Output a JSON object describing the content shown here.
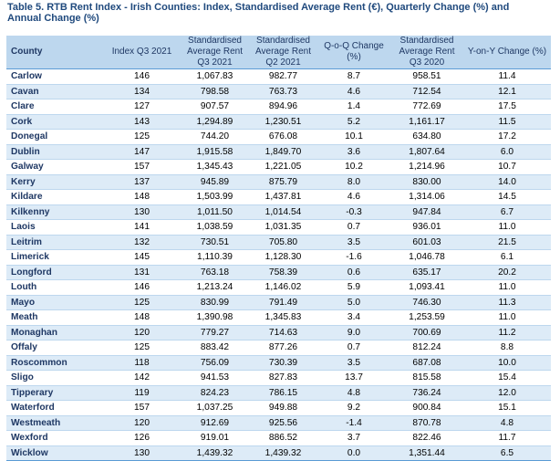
{
  "caption": "Table 5. RTB Rent Index - Irish Counties:  Index, Standardised Average Rent (€), Quarterly Change (%) and Annual Change (%)",
  "headers": {
    "county": "County",
    "index_q3_2021": "Index Q3 2021",
    "avg_rent_q3_2021": "Standardised Average Rent Q3 2021",
    "avg_rent_q2_2021": "Standardised Average Rent Q2 2021",
    "q_o_q": "Q-o-Q Change (%)",
    "avg_rent_q3_2020": "Standardised Average Rent Q3 2020",
    "y_o_y": "Y-on-Y Change (%)"
  },
  "rows": [
    [
      "Carlow",
      "146",
      "1,067.83",
      "982.77",
      "8.7",
      "958.51",
      "11.4"
    ],
    [
      "Cavan",
      "134",
      "798.58",
      "763.73",
      "4.6",
      "712.54",
      "12.1"
    ],
    [
      "Clare",
      "127",
      "907.57",
      "894.96",
      "1.4",
      "772.69",
      "17.5"
    ],
    [
      "Cork",
      "143",
      "1,294.89",
      "1,230.51",
      "5.2",
      "1,161.17",
      "11.5"
    ],
    [
      "Donegal",
      "125",
      "744.20",
      "676.08",
      "10.1",
      "634.80",
      "17.2"
    ],
    [
      "Dublin",
      "147",
      "1,915.58",
      "1,849.70",
      "3.6",
      "1,807.64",
      "6.0"
    ],
    [
      "Galway",
      "157",
      "1,345.43",
      "1,221.05",
      "10.2",
      "1,214.96",
      "10.7"
    ],
    [
      "Kerry",
      "137",
      "945.89",
      "875.79",
      "8.0",
      "830.00",
      "14.0"
    ],
    [
      "Kildare",
      "148",
      "1,503.99",
      "1,437.81",
      "4.6",
      "1,314.06",
      "14.5"
    ],
    [
      "Kilkenny",
      "130",
      "1,011.50",
      "1,014.54",
      "-0.3",
      "947.84",
      "6.7"
    ],
    [
      "Laois",
      "141",
      "1,038.59",
      "1,031.35",
      "0.7",
      "936.01",
      "11.0"
    ],
    [
      "Leitrim",
      "132",
      "730.51",
      "705.80",
      "3.5",
      "601.03",
      "21.5"
    ],
    [
      "Limerick",
      "145",
      "1,110.39",
      "1,128.30",
      "-1.6",
      "1,046.78",
      "6.1"
    ],
    [
      "Longford",
      "131",
      "763.18",
      "758.39",
      "0.6",
      "635.17",
      "20.2"
    ],
    [
      "Louth",
      "146",
      "1,213.24",
      "1,146.02",
      "5.9",
      "1,093.41",
      "11.0"
    ],
    [
      "Mayo",
      "125",
      "830.99",
      "791.49",
      "5.0",
      "746.30",
      "11.3"
    ],
    [
      "Meath",
      "148",
      "1,390.98",
      "1,345.83",
      "3.4",
      "1,253.59",
      "11.0"
    ],
    [
      "Monaghan",
      "120",
      "779.27",
      "714.63",
      "9.0",
      "700.69",
      "11.2"
    ],
    [
      "Offaly",
      "125",
      "883.42",
      "877.26",
      "0.7",
      "812.24",
      "8.8"
    ],
    [
      "Roscommon",
      "118",
      "756.09",
      "730.39",
      "3.5",
      "687.08",
      "10.0"
    ],
    [
      "Sligo",
      "142",
      "941.53",
      "827.83",
      "13.7",
      "815.58",
      "15.4"
    ],
    [
      "Tipperary",
      "119",
      "824.23",
      "786.15",
      "4.8",
      "736.24",
      "12.0"
    ],
    [
      "Waterford",
      "157",
      "1,037.25",
      "949.88",
      "9.2",
      "900.84",
      "15.1"
    ],
    [
      "Westmeath",
      "120",
      "912.69",
      "925.56",
      "-1.4",
      "870.78",
      "4.8"
    ],
    [
      "Wexford",
      "126",
      "919.01",
      "886.52",
      "3.7",
      "822.46",
      "11.7"
    ],
    [
      "Wicklow",
      "130",
      "1,439.32",
      "1,439.32",
      "0.0",
      "1,351.44",
      "6.5"
    ]
  ]
}
